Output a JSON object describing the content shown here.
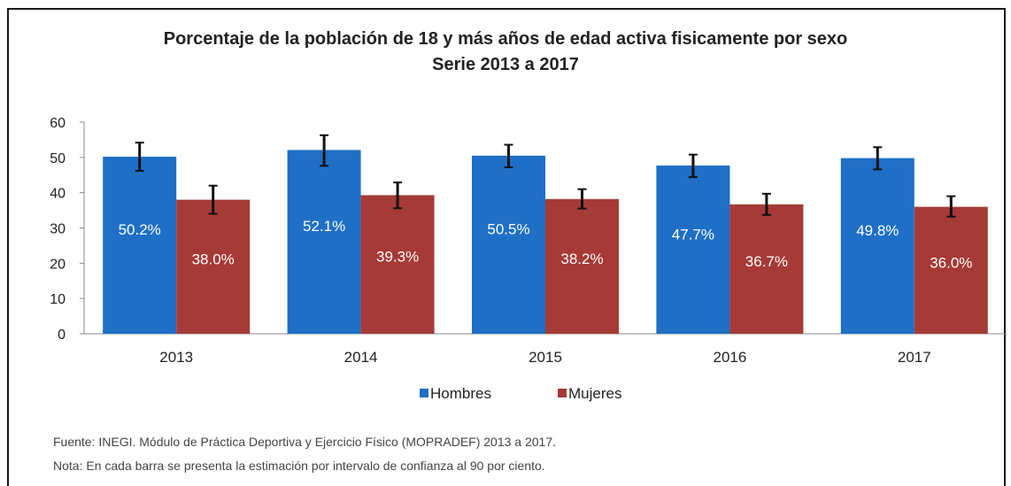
{
  "chart_data": {
    "type": "bar",
    "title": "Porcentaje de la población de 18 y más años de edad activa fisicamente por sexo",
    "subtitle": "Serie 2013 a 2017",
    "categories": [
      "2013",
      "2014",
      "2015",
      "2016",
      "2017"
    ],
    "series": [
      {
        "name": "Hombres",
        "color": "#1f6fc6",
        "values": [
          50.2,
          52.1,
          50.5,
          47.7,
          49.8
        ],
        "labels": [
          "50.2%",
          "52.1%",
          "50.5%",
          "47.7%",
          "49.8%"
        ],
        "ci_low": [
          46.2,
          47.6,
          47.2,
          44.4,
          46.6
        ],
        "ci_high": [
          54.2,
          56.3,
          53.6,
          50.8,
          52.9
        ]
      },
      {
        "name": "Mujeres",
        "color": "#a63a36",
        "values": [
          38.0,
          39.3,
          38.2,
          36.7,
          36.0
        ],
        "labels": [
          "38.0%",
          "39.3%",
          "38.2%",
          "36.7%",
          "36.0%"
        ],
        "ci_low": [
          34.0,
          35.6,
          35.5,
          33.7,
          33.2
        ],
        "ci_high": [
          42.0,
          42.9,
          41.0,
          39.7,
          39.0
        ]
      }
    ],
    "ylim": [
      0,
      60
    ],
    "yticks": [
      "0",
      "10",
      "20",
      "30",
      "40",
      "50",
      "60"
    ],
    "grid": false,
    "legend_position": "bottom-center",
    "xlabel": "",
    "ylabel": ""
  },
  "notes": {
    "source": "Fuente: INEGI. Módulo de Práctica Deportiva y Ejercicio Físico (MOPRADEF) 2013 a 2017.",
    "note": "Nota: En cada barra se presenta la estimación por intervalo de confianza al 90 por ciento."
  }
}
